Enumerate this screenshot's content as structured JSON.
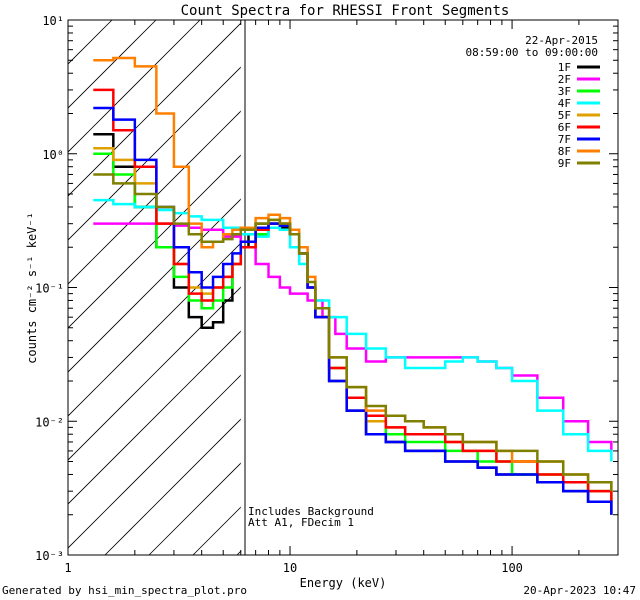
{
  "chart_data": {
    "type": "line",
    "title": "Count Spectra for RHESSI Front Segments",
    "xlabel": "Energy (keV)",
    "ylabel": "counts cm⁻² s⁻¹ keV⁻¹",
    "xscale": "log",
    "yscale": "log",
    "xlim": [
      1,
      300
    ],
    "ylim": [
      0.001,
      10
    ],
    "x_ticks": [
      {
        "value": 1,
        "label": "1"
      },
      {
        "value": 10,
        "label": "10"
      },
      {
        "value": 100,
        "label": "100"
      }
    ],
    "y_ticks": [
      {
        "value": 10,
        "label": "10¹"
      },
      {
        "value": 1,
        "label": "10⁰"
      },
      {
        "value": 0.1,
        "label": "10⁻¹"
      },
      {
        "value": 0.01,
        "label": "10⁻²"
      },
      {
        "value": 0.001,
        "label": "10⁻³"
      }
    ],
    "date": "22-Apr-2015",
    "time_range": "08:59:00 to 09:00:00",
    "annotations": [
      "Includes Background",
      "Att A1, FDecim 1"
    ],
    "shaded_region_keV": [
      1,
      6
    ],
    "legend_position": "top-right",
    "series": [
      {
        "name": "1F",
        "color": "#000000",
        "values": [
          [
            1.3,
            1.4
          ],
          [
            1.6,
            0.8
          ],
          [
            2.0,
            0.4
          ],
          [
            2.5,
            0.2
          ],
          [
            3.0,
            0.1
          ],
          [
            3.5,
            0.06
          ],
          [
            4.0,
            0.05
          ],
          [
            4.5,
            0.055
          ],
          [
            5.0,
            0.08
          ],
          [
            5.5,
            0.15
          ],
          [
            6.0,
            0.2
          ],
          [
            6.5,
            0.25
          ],
          [
            7.0,
            0.3
          ],
          [
            8.0,
            0.3
          ],
          [
            9.0,
            0.28
          ],
          [
            10.0,
            0.25
          ],
          [
            11.0,
            0.18
          ],
          [
            12.0,
            0.1
          ],
          [
            13.0,
            0.06
          ],
          [
            15.0,
            0.02
          ],
          [
            18.0,
            0.012
          ],
          [
            22.0,
            0.008
          ],
          [
            27.0,
            0.007
          ],
          [
            33.0,
            0.006
          ],
          [
            40.0,
            0.006
          ],
          [
            50.0,
            0.005
          ],
          [
            60.0,
            0.005
          ],
          [
            70.0,
            0.0045
          ],
          [
            85.0,
            0.004
          ],
          [
            100.0,
            0.004
          ],
          [
            130.0,
            0.0035
          ],
          [
            170.0,
            0.003
          ],
          [
            220.0,
            0.0025
          ],
          [
            280.0,
            0.002
          ]
        ]
      },
      {
        "name": "2F",
        "color": "#ff00ff",
        "values": [
          [
            1.3,
            0.3
          ],
          [
            1.6,
            0.3
          ],
          [
            2.0,
            0.3
          ],
          [
            2.5,
            0.3
          ],
          [
            3.0,
            0.29
          ],
          [
            3.5,
            0.28
          ],
          [
            4.0,
            0.27
          ],
          [
            5.0,
            0.24
          ],
          [
            6.0,
            0.2
          ],
          [
            7.0,
            0.15
          ],
          [
            8.0,
            0.12
          ],
          [
            9.0,
            0.1
          ],
          [
            10.0,
            0.09
          ],
          [
            11.0,
            0.09
          ],
          [
            12.0,
            0.08
          ],
          [
            14.0,
            0.06
          ],
          [
            16.0,
            0.045
          ],
          [
            18.0,
            0.035
          ],
          [
            22.0,
            0.028
          ],
          [
            27.0,
            0.03
          ],
          [
            33.0,
            0.03
          ],
          [
            40.0,
            0.03
          ],
          [
            50.0,
            0.03
          ],
          [
            60.0,
            0.03
          ],
          [
            70.0,
            0.028
          ],
          [
            85.0,
            0.025
          ],
          [
            100.0,
            0.022
          ],
          [
            130.0,
            0.015
          ],
          [
            170.0,
            0.01
          ],
          [
            220.0,
            0.007
          ],
          [
            280.0,
            0.006
          ]
        ]
      },
      {
        "name": "3F",
        "color": "#00ff00",
        "values": [
          [
            1.3,
            1.0
          ],
          [
            1.6,
            0.7
          ],
          [
            2.0,
            0.4
          ],
          [
            2.5,
            0.2
          ],
          [
            3.0,
            0.12
          ],
          [
            3.5,
            0.08
          ],
          [
            4.0,
            0.07
          ],
          [
            4.5,
            0.08
          ],
          [
            5.0,
            0.1
          ],
          [
            5.5,
            0.15
          ],
          [
            6.0,
            0.2
          ],
          [
            7.0,
            0.25
          ],
          [
            8.0,
            0.3
          ],
          [
            9.0,
            0.3
          ],
          [
            10.0,
            0.25
          ],
          [
            11.0,
            0.18
          ],
          [
            12.0,
            0.1
          ],
          [
            13.0,
            0.06
          ],
          [
            15.0,
            0.025
          ],
          [
            18.0,
            0.015
          ],
          [
            22.0,
            0.01
          ],
          [
            27.0,
            0.008
          ],
          [
            33.0,
            0.007
          ],
          [
            40.0,
            0.007
          ],
          [
            50.0,
            0.006
          ],
          [
            60.0,
            0.006
          ],
          [
            70.0,
            0.005
          ],
          [
            85.0,
            0.005
          ],
          [
            100.0,
            0.004
          ],
          [
            130.0,
            0.004
          ],
          [
            170.0,
            0.0035
          ],
          [
            220.0,
            0.003
          ],
          [
            280.0,
            0.0025
          ]
        ]
      },
      {
        "name": "4F",
        "color": "#00ffff",
        "values": [
          [
            1.3,
            0.45
          ],
          [
            1.6,
            0.42
          ],
          [
            2.0,
            0.4
          ],
          [
            2.5,
            0.38
          ],
          [
            3.0,
            0.36
          ],
          [
            3.5,
            0.34
          ],
          [
            4.0,
            0.32
          ],
          [
            5.0,
            0.28
          ],
          [
            6.0,
            0.25
          ],
          [
            7.0,
            0.24
          ],
          [
            8.0,
            0.28
          ],
          [
            9.0,
            0.27
          ],
          [
            10.0,
            0.2
          ],
          [
            11.0,
            0.15
          ],
          [
            12.0,
            0.1
          ],
          [
            13.0,
            0.08
          ],
          [
            15.0,
            0.06
          ],
          [
            18.0,
            0.045
          ],
          [
            22.0,
            0.035
          ],
          [
            27.0,
            0.03
          ],
          [
            33.0,
            0.025
          ],
          [
            40.0,
            0.025
          ],
          [
            50.0,
            0.028
          ],
          [
            60.0,
            0.03
          ],
          [
            70.0,
            0.028
          ],
          [
            85.0,
            0.025
          ],
          [
            100.0,
            0.02
          ],
          [
            130.0,
            0.012
          ],
          [
            170.0,
            0.008
          ],
          [
            220.0,
            0.006
          ],
          [
            280.0,
            0.005
          ]
        ]
      },
      {
        "name": "5F",
        "color": "#e0a000",
        "values": [
          [
            1.3,
            1.1
          ],
          [
            1.6,
            0.9
          ],
          [
            2.0,
            0.6
          ],
          [
            2.5,
            0.3
          ],
          [
            3.0,
            0.15
          ],
          [
            3.5,
            0.1
          ],
          [
            4.0,
            0.09
          ],
          [
            4.5,
            0.1
          ],
          [
            5.0,
            0.12
          ],
          [
            5.5,
            0.15
          ],
          [
            6.0,
            0.2
          ],
          [
            7.0,
            0.28
          ],
          [
            8.0,
            0.32
          ],
          [
            9.0,
            0.3
          ],
          [
            10.0,
            0.25
          ],
          [
            11.0,
            0.18
          ],
          [
            12.0,
            0.1
          ],
          [
            13.0,
            0.06
          ],
          [
            15.0,
            0.025
          ],
          [
            18.0,
            0.015
          ],
          [
            22.0,
            0.01
          ],
          [
            27.0,
            0.009
          ],
          [
            33.0,
            0.008
          ],
          [
            40.0,
            0.008
          ],
          [
            50.0,
            0.007
          ],
          [
            60.0,
            0.006
          ],
          [
            70.0,
            0.006
          ],
          [
            85.0,
            0.005
          ],
          [
            100.0,
            0.005
          ],
          [
            130.0,
            0.004
          ],
          [
            170.0,
            0.0035
          ],
          [
            220.0,
            0.003
          ],
          [
            280.0,
            0.0025
          ]
        ]
      },
      {
        "name": "6F",
        "color": "#ff0000",
        "values": [
          [
            1.3,
            3.0
          ],
          [
            1.6,
            1.5
          ],
          [
            2.0,
            0.8
          ],
          [
            2.5,
            0.3
          ],
          [
            3.0,
            0.15
          ],
          [
            3.5,
            0.09
          ],
          [
            4.0,
            0.08
          ],
          [
            4.5,
            0.1
          ],
          [
            5.0,
            0.12
          ],
          [
            5.5,
            0.15
          ],
          [
            6.0,
            0.2
          ],
          [
            7.0,
            0.27
          ],
          [
            8.0,
            0.3
          ],
          [
            9.0,
            0.3
          ],
          [
            10.0,
            0.25
          ],
          [
            11.0,
            0.18
          ],
          [
            12.0,
            0.1
          ],
          [
            13.0,
            0.06
          ],
          [
            15.0,
            0.025
          ],
          [
            18.0,
            0.015
          ],
          [
            22.0,
            0.011
          ],
          [
            27.0,
            0.009
          ],
          [
            33.0,
            0.008
          ],
          [
            40.0,
            0.008
          ],
          [
            50.0,
            0.007
          ],
          [
            60.0,
            0.006
          ],
          [
            70.0,
            0.006
          ],
          [
            85.0,
            0.005
          ],
          [
            100.0,
            0.005
          ],
          [
            130.0,
            0.004
          ],
          [
            170.0,
            0.0035
          ],
          [
            220.0,
            0.003
          ],
          [
            280.0,
            0.0025
          ]
        ]
      },
      {
        "name": "7F",
        "color": "#0000ff",
        "values": [
          [
            1.3,
            2.2
          ],
          [
            1.6,
            1.8
          ],
          [
            2.0,
            0.9
          ],
          [
            2.5,
            0.4
          ],
          [
            3.0,
            0.2
          ],
          [
            3.5,
            0.13
          ],
          [
            4.0,
            0.1
          ],
          [
            4.5,
            0.12
          ],
          [
            5.0,
            0.15
          ],
          [
            5.5,
            0.18
          ],
          [
            6.0,
            0.22
          ],
          [
            7.0,
            0.28
          ],
          [
            8.0,
            0.3
          ],
          [
            9.0,
            0.29
          ],
          [
            10.0,
            0.25
          ],
          [
            11.0,
            0.18
          ],
          [
            12.0,
            0.1
          ],
          [
            13.0,
            0.06
          ],
          [
            15.0,
            0.02
          ],
          [
            18.0,
            0.012
          ],
          [
            22.0,
            0.008
          ],
          [
            27.0,
            0.007
          ],
          [
            33.0,
            0.006
          ],
          [
            40.0,
            0.006
          ],
          [
            50.0,
            0.005
          ],
          [
            60.0,
            0.005
          ],
          [
            70.0,
            0.0045
          ],
          [
            85.0,
            0.004
          ],
          [
            100.0,
            0.004
          ],
          [
            130.0,
            0.0035
          ],
          [
            170.0,
            0.003
          ],
          [
            220.0,
            0.0025
          ],
          [
            280.0,
            0.002
          ]
        ]
      },
      {
        "name": "8F",
        "color": "#ff8000",
        "values": [
          [
            1.3,
            5.0
          ],
          [
            1.6,
            5.2
          ],
          [
            2.0,
            4.5
          ],
          [
            2.5,
            2.0
          ],
          [
            3.0,
            0.8
          ],
          [
            3.5,
            0.3
          ],
          [
            4.0,
            0.2
          ],
          [
            4.5,
            0.22
          ],
          [
            5.0,
            0.25
          ],
          [
            5.5,
            0.27
          ],
          [
            6.0,
            0.28
          ],
          [
            7.0,
            0.33
          ],
          [
            8.0,
            0.35
          ],
          [
            9.0,
            0.33
          ],
          [
            10.0,
            0.27
          ],
          [
            11.0,
            0.2
          ],
          [
            12.0,
            0.12
          ],
          [
            13.0,
            0.07
          ],
          [
            15.0,
            0.03
          ],
          [
            18.0,
            0.018
          ],
          [
            22.0,
            0.012
          ],
          [
            27.0,
            0.011
          ],
          [
            33.0,
            0.01
          ],
          [
            40.0,
            0.009
          ],
          [
            50.0,
            0.008
          ],
          [
            60.0,
            0.007
          ],
          [
            70.0,
            0.007
          ],
          [
            85.0,
            0.006
          ],
          [
            100.0,
            0.005
          ],
          [
            130.0,
            0.005
          ],
          [
            170.0,
            0.004
          ],
          [
            220.0,
            0.0035
          ],
          [
            280.0,
            0.003
          ]
        ]
      },
      {
        "name": "9F",
        "color": "#808000",
        "values": [
          [
            1.3,
            0.7
          ],
          [
            1.6,
            0.6
          ],
          [
            2.0,
            0.5
          ],
          [
            2.5,
            0.4
          ],
          [
            3.0,
            0.3
          ],
          [
            3.5,
            0.25
          ],
          [
            4.0,
            0.22
          ],
          [
            4.5,
            0.22
          ],
          [
            5.0,
            0.23
          ],
          [
            5.5,
            0.25
          ],
          [
            6.0,
            0.27
          ],
          [
            7.0,
            0.3
          ],
          [
            8.0,
            0.32
          ],
          [
            9.0,
            0.3
          ],
          [
            10.0,
            0.25
          ],
          [
            11.0,
            0.18
          ],
          [
            12.0,
            0.11
          ],
          [
            13.0,
            0.07
          ],
          [
            15.0,
            0.03
          ],
          [
            18.0,
            0.018
          ],
          [
            22.0,
            0.013
          ],
          [
            27.0,
            0.011
          ],
          [
            33.0,
            0.01
          ],
          [
            40.0,
            0.009
          ],
          [
            50.0,
            0.008
          ],
          [
            60.0,
            0.007
          ],
          [
            70.0,
            0.007
          ],
          [
            85.0,
            0.006
          ],
          [
            100.0,
            0.006
          ],
          [
            130.0,
            0.005
          ],
          [
            170.0,
            0.004
          ],
          [
            220.0,
            0.0035
          ],
          [
            280.0,
            0.003
          ]
        ]
      }
    ]
  },
  "footer": {
    "generated_by": "Generated by hsi_min_spectra_plot.pro",
    "timestamp": "20-Apr-2023 10:47"
  }
}
